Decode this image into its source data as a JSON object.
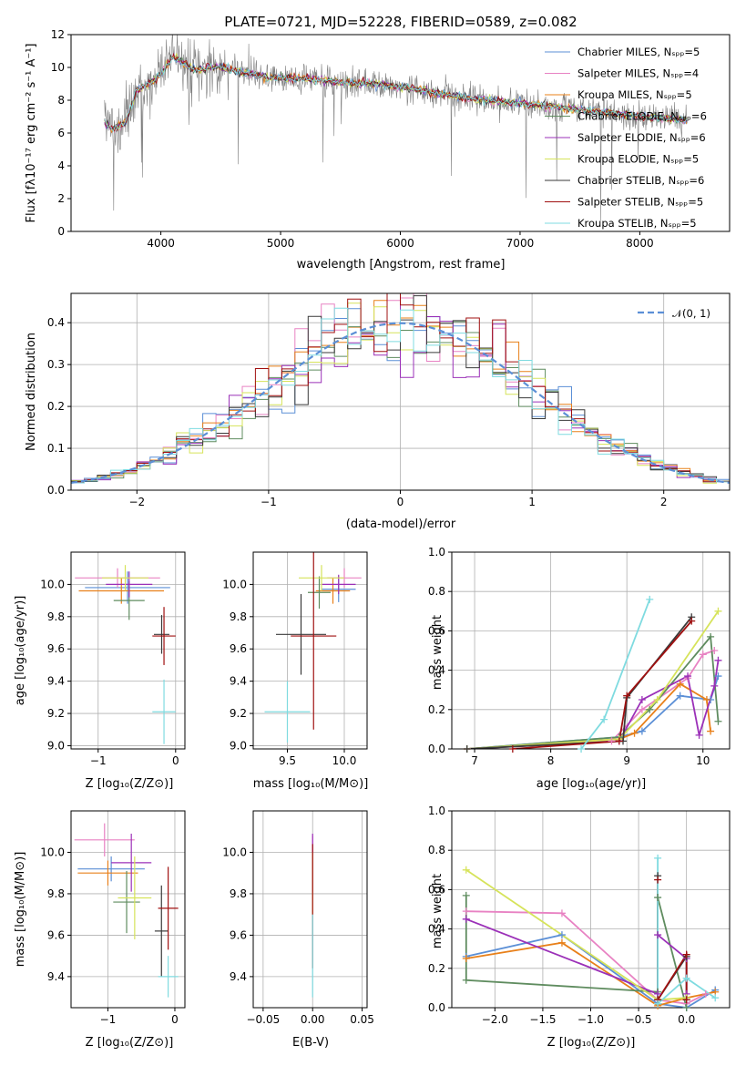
{
  "chart_data": [
    {
      "type": "line",
      "id": "spectrum",
      "title": "PLATE=0721, MJD=52228, FIBERID=0589, z=0.082",
      "xlabel": "wavelength [Angstrom, rest frame]",
      "ylabel": "Flux [fλ10⁻¹⁷ erg cm⁻² s⁻¹ A⁻¹]",
      "xlim": [
        3250,
        8750
      ],
      "ylim": [
        0,
        12
      ],
      "xticks": [
        4000,
        5000,
        6000,
        7000,
        8000
      ],
      "yticks": [
        0,
        2,
        4,
        6,
        8,
        10,
        12
      ],
      "legend_position": "top-right",
      "series": [
        {
          "name": "Chabrier MILES, Nₛₚₚ=5",
          "color": "#5b8fd6"
        },
        {
          "name": "Salpeter MILES, Nₛₚₚ=4",
          "color": "#e882c3"
        },
        {
          "name": "Kroupa MILES, Nₛₚₚ=5",
          "color": "#e8801a"
        },
        {
          "name": "Chabrier ELODIE, Nₛₚₚ=6",
          "color": "#5f8c5f"
        },
        {
          "name": "Salpeter ELODIE, Nₛₚₚ=6",
          "color": "#9b30b8"
        },
        {
          "name": "Kroupa ELODIE, Nₛₚₚ=5",
          "color": "#d6e35a"
        },
        {
          "name": "Chabrier STELIB, Nₛₚₚ=6",
          "color": "#3a3a3a"
        },
        {
          "name": "Salpeter STELIB, Nₛₚₚ=5",
          "color": "#a01010"
        },
        {
          "name": "Kroupa STELIB, Nₛₚₚ=5",
          "color": "#7fdbe0"
        }
      ],
      "observed_color": "#808080",
      "model_curve_x": [
        3530,
        3600,
        3700,
        3800,
        3900,
        4000,
        4100,
        4200,
        4300,
        4400,
        4500,
        4700,
        4900,
        5200,
        5500,
        5800,
        6100,
        6400,
        6700,
        7000,
        7300,
        7500,
        7800,
        8000,
        8200,
        8400
      ],
      "model_curve_y": [
        6.7,
        6.2,
        6.6,
        8.6,
        9.0,
        9.6,
        10.7,
        10.2,
        9.8,
        10.0,
        10.0,
        9.7,
        9.4,
        9.3,
        9.1,
        9.0,
        8.7,
        8.3,
        8.0,
        7.8,
        7.6,
        7.4,
        7.2,
        7.0,
        6.9,
        6.8
      ]
    },
    {
      "type": "line",
      "id": "residuals",
      "xlabel": "(data-model)/error",
      "ylabel": "Normed distribution",
      "xlim": [
        -2.5,
        2.5
      ],
      "ylim": [
        0,
        0.47
      ],
      "xticks": [
        -2,
        -1,
        0,
        1,
        2
      ],
      "yticks": [
        0.0,
        0.1,
        0.2,
        0.3,
        0.4
      ],
      "legend": "𝒩(0, 1)",
      "legend_position": "top-right",
      "gaussian": {
        "mean": 0,
        "sigma": 1
      },
      "bin_width": 0.1
    },
    {
      "type": "scatter",
      "id": "age-vs-Z",
      "xlabel": "Z [log₁₀(Z/Z⊙)]",
      "ylabel": "age  [log₁₀(age/yr)]",
      "xlim": [
        -1.35,
        0.12
      ],
      "ylim": [
        8.98,
        10.2
      ],
      "xticks": [
        -1,
        0
      ],
      "yticks": [
        9.0,
        9.2,
        9.4,
        9.6,
        9.8,
        10.0
      ],
      "points": [
        {
          "x": -0.62,
          "xerr": 0.55,
          "y": 9.98,
          "yerr": 0.1,
          "color": "#5b8fd6"
        },
        {
          "x": -0.75,
          "xerr": 0.55,
          "y": 10.04,
          "yerr": 0.06,
          "color": "#e882c3"
        },
        {
          "x": -0.7,
          "xerr": 0.55,
          "y": 9.96,
          "yerr": 0.08,
          "color": "#e8801a"
        },
        {
          "x": -0.6,
          "xerr": 0.2,
          "y": 9.9,
          "yerr": 0.12,
          "color": "#5f8c5f"
        },
        {
          "x": -0.6,
          "xerr": 0.3,
          "y": 10.0,
          "yerr": 0.08,
          "color": "#9b30b8"
        },
        {
          "x": -0.65,
          "xerr": 0.3,
          "y": 10.04,
          "yerr": 0.08,
          "color": "#d6e35a"
        },
        {
          "x": -0.18,
          "xerr": 0.1,
          "y": 9.69,
          "yerr": 0.12,
          "color": "#3a3a3a"
        },
        {
          "x": -0.15,
          "xerr": 0.15,
          "y": 9.68,
          "yerr": 0.18,
          "color": "#a01010"
        },
        {
          "x": -0.15,
          "xerr": 0.15,
          "y": 9.21,
          "yerr": 0.2,
          "color": "#7fdbe0"
        }
      ]
    },
    {
      "type": "scatter",
      "id": "age-vs-mass",
      "xlabel": "mass [log₁₀(M/M⊙)]",
      "xlim": [
        9.2,
        10.2
      ],
      "ylim": [
        8.98,
        10.2
      ],
      "xticks": [
        9.5,
        10.0
      ],
      "yticks": [
        9.0,
        9.2,
        9.4,
        9.6,
        9.8,
        10.0
      ],
      "points": [
        {
          "x": 9.95,
          "xerr": 0.15,
          "y": 9.97,
          "yerr": 0.08,
          "color": "#5b8fd6"
        },
        {
          "x": 10.0,
          "xerr": 0.15,
          "y": 10.04,
          "yerr": 0.06,
          "color": "#e882c3"
        },
        {
          "x": 9.9,
          "xerr": 0.15,
          "y": 9.96,
          "yerr": 0.08,
          "color": "#e8801a"
        },
        {
          "x": 9.78,
          "xerr": 0.1,
          "y": 9.95,
          "yerr": 0.1,
          "color": "#5f8c5f"
        },
        {
          "x": 9.95,
          "xerr": 0.15,
          "y": 10.0,
          "yerr": 0.06,
          "color": "#9b30b8"
        },
        {
          "x": 9.8,
          "xerr": 0.2,
          "y": 10.04,
          "yerr": 0.08,
          "color": "#d6e35a"
        },
        {
          "x": 9.62,
          "xerr": 0.22,
          "y": 9.69,
          "yerr": 0.25,
          "color": "#3a3a3a"
        },
        {
          "x": 9.73,
          "xerr": 0.2,
          "y": 9.68,
          "yerr": 0.58,
          "color": "#a01010"
        },
        {
          "x": 9.5,
          "xerr": 0.2,
          "y": 9.21,
          "yerr": 0.19,
          "color": "#7fdbe0"
        }
      ]
    },
    {
      "type": "line",
      "id": "massweight-vs-age",
      "xlabel": "age  [log₁₀(age/yr)]",
      "ylabel": "mass weight",
      "xlim": [
        6.7,
        10.35
      ],
      "ylim": [
        0,
        1.0
      ],
      "xticks": [
        7,
        8,
        9,
        10
      ],
      "yticks": [
        0.0,
        0.2,
        0.4,
        0.6,
        0.8,
        1.0
      ],
      "series": [
        {
          "color": "#5b8fd6",
          "x": [
            6.9,
            8.9,
            9.2,
            9.7,
            10.1,
            10.2
          ],
          "y": [
            0.0,
            0.06,
            0.09,
            0.27,
            0.25,
            0.37
          ]
        },
        {
          "color": "#e882c3",
          "x": [
            6.9,
            8.8,
            9.2,
            9.8,
            10.0,
            10.15
          ],
          "y": [
            0.0,
            0.04,
            0.2,
            0.36,
            0.48,
            0.5
          ]
        },
        {
          "color": "#e8801a",
          "x": [
            6.9,
            8.9,
            9.1,
            9.7,
            10.05,
            10.1
          ],
          "y": [
            0.0,
            0.05,
            0.08,
            0.33,
            0.25,
            0.09
          ]
        },
        {
          "color": "#5f8c5f",
          "x": [
            6.9,
            8.9,
            9.3,
            10.1,
            10.2
          ],
          "y": [
            0.0,
            0.06,
            0.2,
            0.57,
            0.14
          ]
        },
        {
          "color": "#9b30b8",
          "x": [
            6.9,
            8.9,
            9.2,
            9.8,
            9.95,
            10.15,
            10.2
          ],
          "y": [
            0.0,
            0.04,
            0.25,
            0.37,
            0.07,
            0.32,
            0.45
          ]
        },
        {
          "color": "#d6e35a",
          "x": [
            6.9,
            8.9,
            9.4,
            10.2
          ],
          "y": [
            0.0,
            0.05,
            0.25,
            0.7
          ]
        },
        {
          "color": "#3a3a3a",
          "x": [
            6.9,
            8.95,
            9.0,
            9.85
          ],
          "y": [
            0.0,
            0.04,
            0.26,
            0.67
          ]
        },
        {
          "color": "#a01010",
          "x": [
            7.5,
            8.9,
            9.0,
            9.85
          ],
          "y": [
            0.0,
            0.04,
            0.27,
            0.65
          ]
        },
        {
          "color": "#7fdbe0",
          "x": [
            8.4,
            8.7,
            9.3
          ],
          "y": [
            0.0,
            0.15,
            0.76
          ]
        }
      ]
    },
    {
      "type": "scatter",
      "id": "mass-vs-Z",
      "xlabel": "Z [log₁₀(Z/Z⊙)]",
      "ylabel": "mass [log₁₀(M/M⊙)]",
      "xlim": [
        -1.55,
        0.15
      ],
      "ylim": [
        9.25,
        10.2
      ],
      "xticks": [
        -1,
        0
      ],
      "yticks": [
        9.4,
        9.6,
        9.8,
        10.0
      ],
      "points": [
        {
          "x": -0.95,
          "xerr": 0.5,
          "y": 9.92,
          "yerr": 0.06,
          "color": "#5b8fd6"
        },
        {
          "x": -1.05,
          "xerr": 0.45,
          "y": 10.06,
          "yerr": 0.08,
          "color": "#e882c3"
        },
        {
          "x": -1.0,
          "xerr": 0.45,
          "y": 9.9,
          "yerr": 0.06,
          "color": "#e8801a"
        },
        {
          "x": -0.72,
          "xerr": 0.2,
          "y": 9.76,
          "yerr": 0.15,
          "color": "#5f8c5f"
        },
        {
          "x": -0.65,
          "xerr": 0.3,
          "y": 9.95,
          "yerr": 0.14,
          "color": "#9b30b8"
        },
        {
          "x": -0.6,
          "xerr": 0.25,
          "y": 9.78,
          "yerr": 0.2,
          "color": "#d6e35a"
        },
        {
          "x": -0.2,
          "xerr": 0.1,
          "y": 9.62,
          "yerr": 0.22,
          "color": "#3a3a3a"
        },
        {
          "x": -0.1,
          "xerr": 0.15,
          "y": 9.73,
          "yerr": 0.2,
          "color": "#a01010"
        },
        {
          "x": -0.1,
          "xerr": 0.15,
          "y": 9.4,
          "yerr": 0.1,
          "color": "#7fdbe0"
        }
      ]
    },
    {
      "type": "scatter",
      "id": "mass-vs-EBV",
      "xlabel": "E(B-V)",
      "xlim": [
        -0.06,
        0.055
      ],
      "ylim": [
        9.25,
        10.2
      ],
      "xticks": [
        -0.05,
        0.0,
        0.05
      ],
      "xticklabels": [
        "−0.05",
        "0.00",
        "0.05"
      ],
      "yticks": [
        9.4,
        9.6,
        9.8,
        10.0
      ],
      "points": [
        {
          "x": 0.0,
          "y": 10.0,
          "yerr": 0.08,
          "color": "#e882c3"
        },
        {
          "x": 0.0,
          "y": 9.95,
          "yerr": 0.14,
          "color": "#9b30b8"
        },
        {
          "x": 0.0,
          "y": 9.85,
          "yerr": 0.15,
          "color": "#d6e35a"
        },
        {
          "x": 0.0,
          "y": 9.74,
          "yerr": 0.3,
          "color": "#a01010"
        },
        {
          "x": 0.0,
          "y": 9.5,
          "yerr": 0.2,
          "color": "#7fdbe0"
        }
      ]
    },
    {
      "type": "line",
      "id": "massweight-vs-Z",
      "xlabel": "Z [log₁₀(Z/Z⊙)]",
      "ylabel": "mass weight",
      "xlim": [
        -2.45,
        0.45
      ],
      "ylim": [
        0,
        1.0
      ],
      "xticks": [
        -2.0,
        -1.5,
        -1.0,
        -0.5,
        0.0
      ],
      "xticklabels": [
        "−2.0",
        "−1.5",
        "−1.0",
        "−0.5",
        "0.0"
      ],
      "yticks": [
        0.0,
        0.2,
        0.4,
        0.6,
        0.8,
        1.0
      ],
      "series": [
        {
          "color": "#5b8fd6",
          "x": [
            -2.3,
            -1.3,
            -0.3,
            0.0,
            0.3
          ],
          "y": [
            0.26,
            0.37,
            0.02,
            0.0,
            0.09
          ]
        },
        {
          "color": "#e882c3",
          "x": [
            -2.3,
            -1.3,
            -0.3,
            0.0,
            0.2
          ],
          "y": [
            0.49,
            0.48,
            0.04,
            0.02,
            0.07
          ]
        },
        {
          "color": "#e8801a",
          "x": [
            -2.3,
            -1.3,
            -0.3,
            0.0,
            0.3
          ],
          "y": [
            0.25,
            0.33,
            0.01,
            0.05,
            0.08
          ]
        },
        {
          "color": "#5f8c5f",
          "x": [
            -2.3,
            -2.3,
            -0.3,
            -0.3,
            0.0
          ],
          "y": [
            0.57,
            0.14,
            0.08,
            0.56,
            0.0
          ]
        },
        {
          "color": "#9b30b8",
          "x": [
            -2.3,
            -0.3,
            -0.3,
            0.0,
            0.0
          ],
          "y": [
            0.45,
            0.07,
            0.37,
            0.25,
            0.07
          ]
        },
        {
          "color": "#d6e35a",
          "x": [
            -2.3,
            -0.3,
            0.0
          ],
          "y": [
            0.7,
            0.04,
            0.05
          ]
        },
        {
          "color": "#3a3a3a",
          "x": [
            -0.3,
            -0.3,
            0.0,
            0.0
          ],
          "y": [
            0.67,
            0.04,
            0.26,
            0.04
          ]
        },
        {
          "color": "#a01010",
          "x": [
            -0.3,
            -0.3,
            0.0,
            0.0
          ],
          "y": [
            0.65,
            0.04,
            0.27,
            0.04
          ]
        },
        {
          "color": "#7fdbe0",
          "x": [
            -0.3,
            -0.3,
            0.0,
            0.3
          ],
          "y": [
            0.76,
            0.02,
            0.15,
            0.05
          ]
        }
      ]
    }
  ]
}
